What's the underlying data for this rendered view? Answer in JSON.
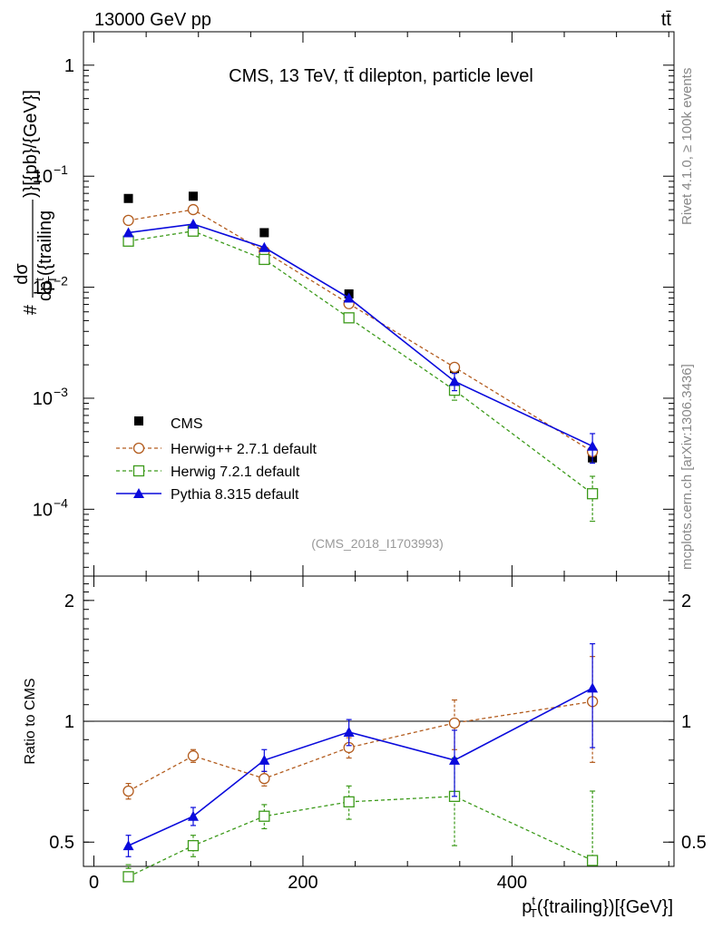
{
  "header": {
    "left": "13000 GeV pp",
    "right": "tt̄"
  },
  "side_labels": {
    "rivet": "Rivet 4.1.0, ≥ 100k events",
    "mcplots": "mcplots.cern.ch [arXiv:1306.3436]"
  },
  "colors": {
    "cms": "#000000",
    "herwigpp": "#b35c1e",
    "herwig7": "#3c9a1a",
    "pythia": "#0a0adc",
    "watermark": "#999999"
  },
  "chart_data": [
    {
      "type": "line",
      "panel": "main",
      "title": "CMS, 13 TeV, tt̄ dilepton, particle level",
      "watermark": "(CMS_2018_I1703993)",
      "yscale": "log",
      "ylabel_parts": {
        "prefix": "#",
        "frac_num": "dσ",
        "frac_den": "dp",
        "frac_den_sup": "t",
        "frac_den_sub": "T",
        "frac_den_tail": "({trailing",
        "suffix": ")}[{pb}/{GeV}]"
      },
      "xlim": [
        -10,
        555
      ],
      "ylim": [
        2.5e-05,
        2.0
      ],
      "yticks": [
        {
          "value": 1,
          "label": "1"
        },
        {
          "value": 0.1,
          "base": "10",
          "exp": "−1"
        },
        {
          "value": 0.01,
          "base": "10",
          "exp": "−2"
        },
        {
          "value": 0.001,
          "base": "10",
          "exp": "−3"
        },
        {
          "value": 0.0001,
          "base": "10",
          "exp": "−4"
        }
      ],
      "legend_position": "lower-left",
      "x": [
        33,
        95,
        163,
        244,
        345,
        477
      ],
      "series": [
        {
          "name": "CMS",
          "key": "cms",
          "style": "data",
          "values": [
            0.063,
            0.066,
            0.031,
            0.0087,
            0.00185,
            0.00029
          ]
        },
        {
          "name": "Herwig++ 2.7.1 default",
          "key": "herwigpp",
          "style": "dashed-open-circle",
          "values": [
            0.04,
            0.05,
            0.021,
            0.0071,
            0.0019,
            0.00033
          ]
        },
        {
          "name": "Herwig 7.2.1 default",
          "key": "herwig7",
          "style": "dashed-open-square",
          "values": [
            0.026,
            0.032,
            0.0178,
            0.0053,
            0.00118,
            0.000138
          ],
          "errors": [
            0,
            0,
            0,
            0,
            0.00022,
            6e-05
          ]
        },
        {
          "name": "Pythia 8.315 default",
          "key": "pythia",
          "style": "solid-triangle",
          "values": [
            0.031,
            0.037,
            0.0228,
            0.008,
            0.00142,
            0.00037
          ],
          "errors": [
            0,
            0,
            0,
            0,
            0.00025,
            0.00011
          ]
        }
      ]
    },
    {
      "type": "line",
      "panel": "ratio",
      "ylabel": "Ratio to CMS",
      "xlabel_parts": {
        "main": "p",
        "sup": "t",
        "sub": "T",
        "tail": "({trailing})[{GeV}]"
      },
      "yscale": "log",
      "xlim": [
        -10,
        555
      ],
      "ylim": [
        0.435,
        2.3
      ],
      "yticks": [
        {
          "value": 0.5,
          "label": "0.5"
        },
        {
          "value": 1,
          "label": "1"
        },
        {
          "value": 2,
          "label": "2"
        }
      ],
      "xticks": [
        {
          "value": 0,
          "label": "0"
        },
        {
          "value": 200,
          "label": "200"
        },
        {
          "value": 400,
          "label": "400"
        }
      ],
      "reference_line": 1,
      "x": [
        33,
        95,
        163,
        244,
        345,
        477
      ],
      "series": [
        {
          "name": "Herwig++ 2.7.1 default",
          "key": "herwigpp",
          "style": "dashed-open-circle",
          "values": [
            0.67,
            0.82,
            0.72,
            0.86,
            0.99,
            1.12
          ],
          "errors": [
            0.03,
            0.03,
            0.03,
            0.05,
            0.14,
            0.33
          ]
        },
        {
          "name": "Herwig 7.2.1 default",
          "key": "herwig7",
          "style": "dashed-open-square",
          "values": [
            0.41,
            0.49,
            0.58,
            0.63,
            0.65,
            0.45
          ],
          "errors": [
            0.02,
            0.03,
            0.04,
            0.06,
            0.16,
            0.22
          ]
        },
        {
          "name": "Pythia 8.315 default",
          "key": "pythia",
          "style": "solid-triangle",
          "values": [
            0.49,
            0.58,
            0.8,
            0.94,
            0.8,
            1.21
          ],
          "errors": [
            0.03,
            0.03,
            0.05,
            0.07,
            0.15,
            0.35
          ]
        }
      ]
    }
  ]
}
